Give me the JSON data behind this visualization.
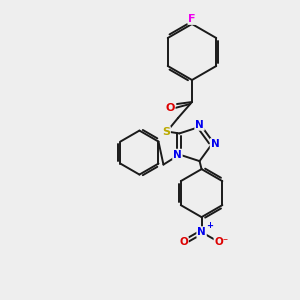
{
  "bg_color": "#eeeeee",
  "bond_color": "#1a1a1a",
  "atom_colors": {
    "F": "#ee00ee",
    "O": "#dd0000",
    "S": "#bbaa00",
    "N": "#0000ee",
    "C": "#1a1a1a"
  }
}
